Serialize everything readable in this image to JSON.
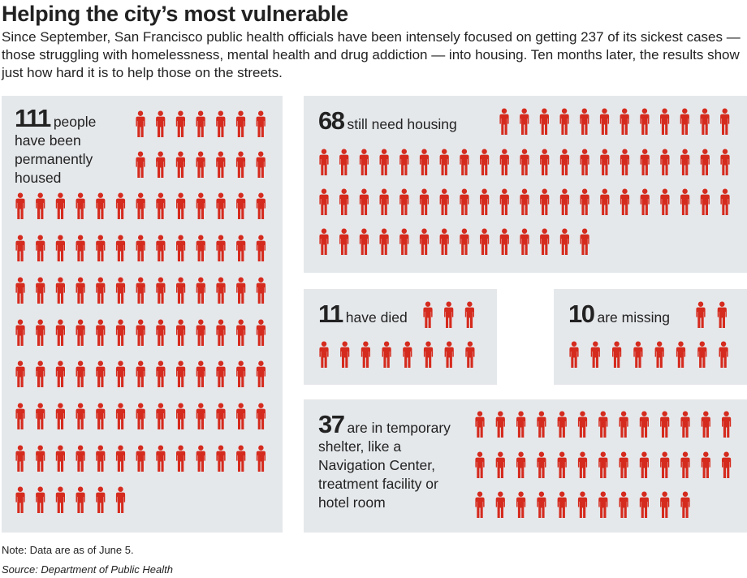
{
  "title": "Helping the city’s most vulnerable",
  "subtitle": "Since September, San Francisco public health officials have been intensely focused on getting 237 of its sickest cases — those struggling with homelessness, mental health and drug addiction — into housing. Ten months later, the results show just how hard it is to help those on the streets.",
  "note": "Note: Data are as of June 5.",
  "source": "Source: Department of Public Health",
  "colors": {
    "figure": "#d52b1e",
    "panel": "#e5e8eb",
    "text": "#222222"
  },
  "icon": "person-icon",
  "chart_data": {
    "type": "pictogram",
    "total": 237,
    "unit": "person",
    "categories": [
      {
        "key": "housed",
        "value": 111,
        "value_label": "111",
        "text": "people have been permanently housed"
      },
      {
        "key": "need",
        "value": 68,
        "value_label": "68",
        "text": "still need housing"
      },
      {
        "key": "died",
        "value": 11,
        "value_label": "11",
        "text": "have died"
      },
      {
        "key": "missing",
        "value": 10,
        "value_label": "10",
        "text": "are missing"
      },
      {
        "key": "shelter",
        "value": 37,
        "value_label": "37",
        "text": "are in temporary shelter, like a Navigation Center, treatment facility or hotel room"
      }
    ]
  }
}
